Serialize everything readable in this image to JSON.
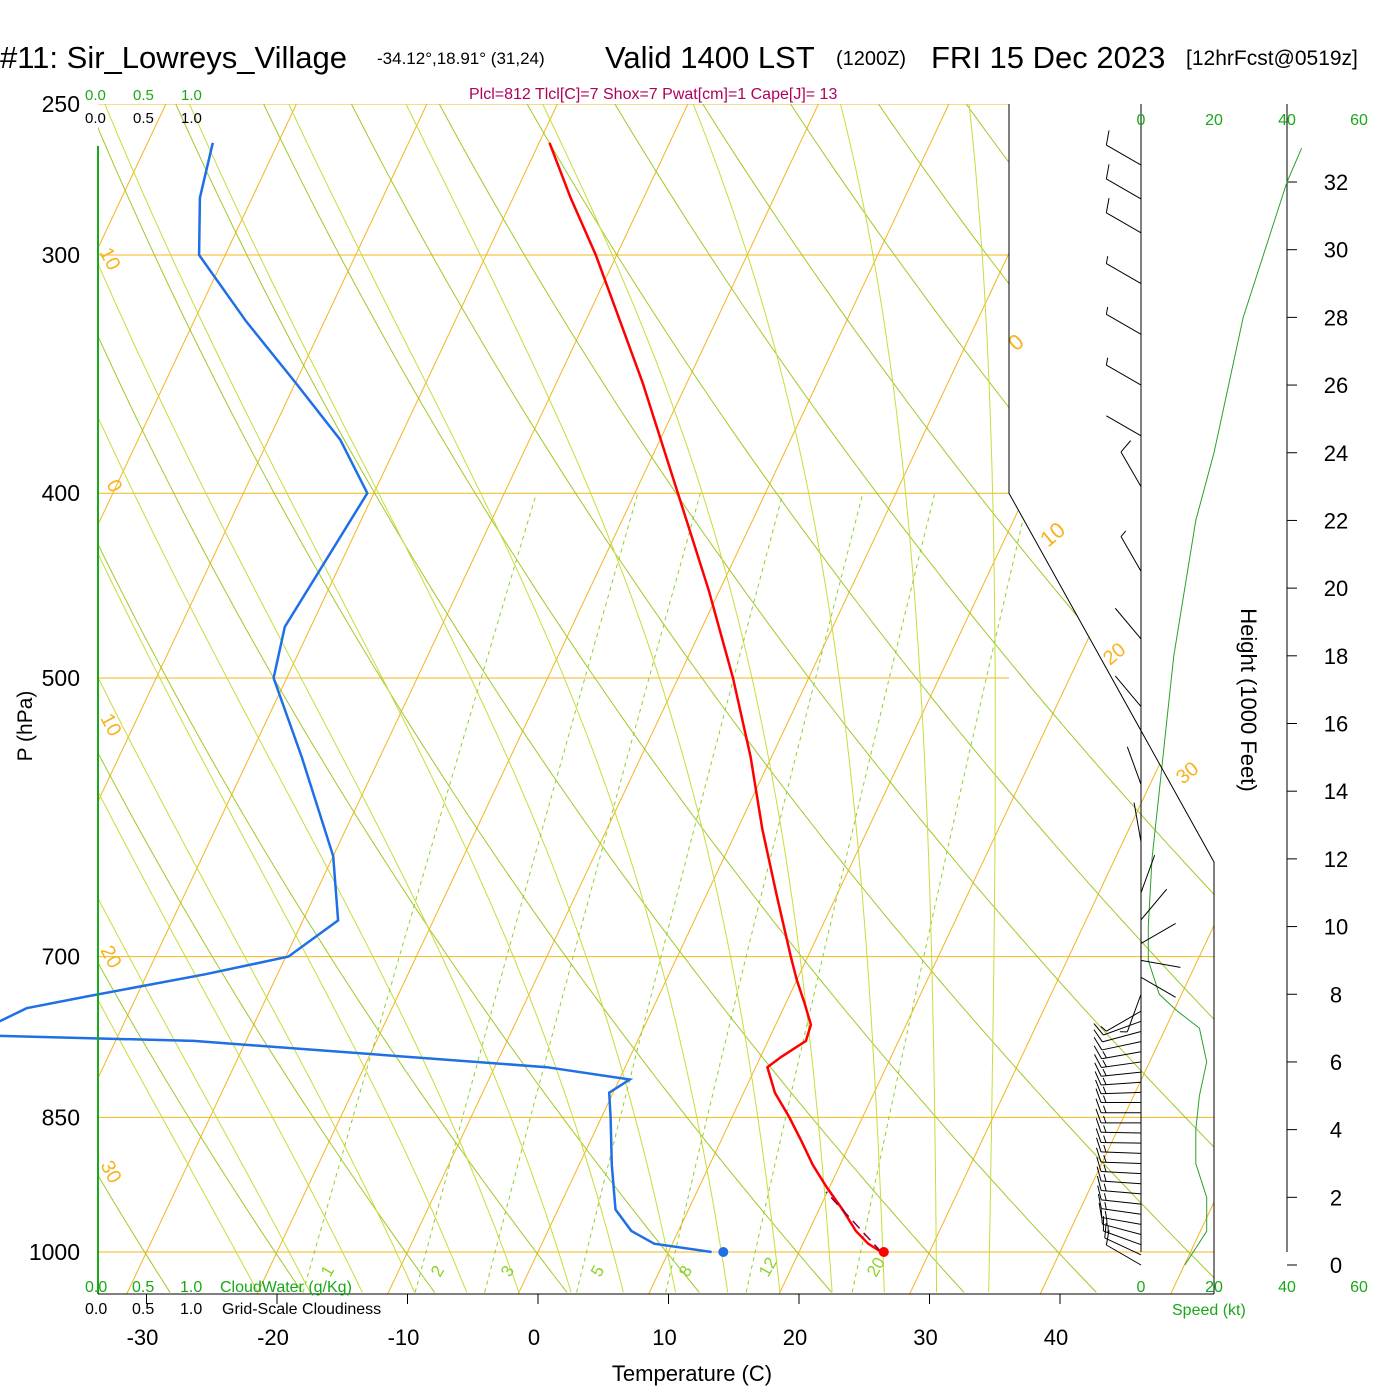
{
  "header": {
    "title_station": "#11: Sir_Lowreys_Village",
    "title_coords": "-34.12°,18.91° (31,24)",
    "title_valid": "Valid 1400 LST",
    "title_z": "(1200Z)",
    "title_date": "FRI 15 Dec 2023",
    "title_fcst": "[12hrFcst@0519z]",
    "stats": "Plcl=812 Tlcl[C]=7 Shox=7 Pwat[cm]=1 Cape[J]= 13"
  },
  "colors": {
    "temperature": "#ff0000",
    "dewpoint": "#1f6fe6",
    "isotherm": "#f5b41e",
    "dry_adiabat": "#9fc92a",
    "moist_adiabat": "#c8dc3c",
    "mixing_ratio": "#8cd22a",
    "green_label": "#18a818",
    "stats_text": "#b0005a",
    "parcel": "#800040"
  },
  "labels": {
    "y_axis": "P (hPa)",
    "x_axis": "Temperature (C)",
    "right_axis": "Height (1000 Feet)",
    "speed_axis": "Speed (kt)",
    "cloudwater": "CloudWater (g/Kg)",
    "cloudiness": "Grid-Scale Cloudiness",
    "cloud_ticks": [
      "0.0",
      "0.5",
      "1.0"
    ]
  },
  "chart_data": {
    "type": "skew-t",
    "pressure_ticks": [
      250,
      300,
      400,
      500,
      700,
      850,
      1000
    ],
    "temperature_ticks": [
      -30,
      -20,
      -10,
      0,
      10,
      20,
      30,
      40
    ],
    "height_ticks_kft": [
      0,
      2,
      4,
      6,
      8,
      10,
      12,
      14,
      16,
      18,
      20,
      22,
      24,
      26,
      28,
      30,
      32
    ],
    "speed_ticks_top": [
      0,
      20,
      40,
      60
    ],
    "speed_ticks_bottom": [
      0,
      20,
      40,
      60
    ],
    "isotherm_labels": [
      -30,
      -20,
      -10,
      0,
      10,
      20,
      30
    ],
    "mixing_ratio_labels": [
      "1",
      "2",
      "3",
      "5",
      "8",
      "12",
      "20"
    ],
    "temperature_profile": [
      {
        "p": 1000,
        "t": 26.3
      },
      {
        "p": 990,
        "t": 25.0
      },
      {
        "p": 975,
        "t": 23.6
      },
      {
        "p": 950,
        "t": 21.8
      },
      {
        "p": 925,
        "t": 19.8
      },
      {
        "p": 900,
        "t": 17.9
      },
      {
        "p": 875,
        "t": 16.2
      },
      {
        "p": 850,
        "t": 14.4
      },
      {
        "p": 825,
        "t": 12.4
      },
      {
        "p": 800,
        "t": 10.9
      },
      {
        "p": 790,
        "t": 11.6
      },
      {
        "p": 775,
        "t": 12.9
      },
      {
        "p": 760,
        "t": 12.7
      },
      {
        "p": 740,
        "t": 11.4
      },
      {
        "p": 720,
        "t": 10.0
      },
      {
        "p": 700,
        "t": 8.7
      },
      {
        "p": 650,
        "t": 5.4
      },
      {
        "p": 600,
        "t": 1.9
      },
      {
        "p": 550,
        "t": -1.6
      },
      {
        "p": 500,
        "t": -5.8
      },
      {
        "p": 450,
        "t": -10.8
      },
      {
        "p": 400,
        "t": -16.7
      },
      {
        "p": 350,
        "t": -23.4
      },
      {
        "p": 300,
        "t": -31.6
      },
      {
        "p": 280,
        "t": -35.6
      },
      {
        "p": 262,
        "t": -39.2
      }
    ],
    "dewpoint_profile": [
      {
        "p": 1000,
        "t": 13.3
      },
      {
        "p": 990,
        "t": 8.6
      },
      {
        "p": 975,
        "t": 6.4
      },
      {
        "p": 950,
        "t": 4.4
      },
      {
        "p": 900,
        "t": 2.5
      },
      {
        "p": 850,
        "t": 0.7
      },
      {
        "p": 825,
        "t": -0.3
      },
      {
        "p": 812,
        "t": 0.8
      },
      {
        "p": 800,
        "t": -6.0
      },
      {
        "p": 775,
        "t": -34.0
      },
      {
        "p": 770,
        "t": -50.0
      },
      {
        "p": 760,
        "t": -50.0
      },
      {
        "p": 745,
        "t": -48.0
      },
      {
        "p": 735,
        "t": -44.0
      },
      {
        "p": 715,
        "t": -35.5
      },
      {
        "p": 700,
        "t": -29.8
      },
      {
        "p": 670,
        "t": -27.3
      },
      {
        "p": 620,
        "t": -30.0
      },
      {
        "p": 550,
        "t": -36.0
      },
      {
        "p": 500,
        "t": -41.0
      },
      {
        "p": 470,
        "t": -42.0
      },
      {
        "p": 400,
        "t": -40.5
      },
      {
        "p": 375,
        "t": -44.5
      },
      {
        "p": 350,
        "t": -50.0
      },
      {
        "p": 325,
        "t": -56.0
      },
      {
        "p": 300,
        "t": -62.0
      },
      {
        "p": 280,
        "t": -64.0
      },
      {
        "p": 262,
        "t": -65.0
      }
    ],
    "surface_temperature_marker": 26.5,
    "surface_dewpoint_marker": 14.2,
    "parcel_path": [
      {
        "p": 1000,
        "t": 26.3
      },
      {
        "p": 960,
        "t": 22.7
      },
      {
        "p": 930,
        "t": 19.9
      }
    ],
    "wind_speed_profile": [
      {
        "z": 0,
        "spd": 12
      },
      {
        "z": 0.5,
        "spd": 15
      },
      {
        "z": 1,
        "spd": 18
      },
      {
        "z": 2,
        "spd": 18
      },
      {
        "z": 3,
        "spd": 15
      },
      {
        "z": 4,
        "spd": 15
      },
      {
        "z": 5,
        "spd": 16
      },
      {
        "z": 6,
        "spd": 18
      },
      {
        "z": 7,
        "spd": 16
      },
      {
        "z": 7.5,
        "spd": 10
      },
      {
        "z": 8,
        "spd": 5
      },
      {
        "z": 9,
        "spd": 2
      },
      {
        "z": 10,
        "spd": 2
      },
      {
        "z": 12,
        "spd": 3
      },
      {
        "z": 14,
        "spd": 5
      },
      {
        "z": 16,
        "spd": 7
      },
      {
        "z": 18,
        "spd": 9
      },
      {
        "z": 20,
        "spd": 12
      },
      {
        "z": 22,
        "spd": 15
      },
      {
        "z": 24,
        "spd": 20
      },
      {
        "z": 26,
        "spd": 24
      },
      {
        "z": 28,
        "spd": 28
      },
      {
        "z": 30,
        "spd": 34
      },
      {
        "z": 32,
        "spd": 40
      },
      {
        "z": 33,
        "spd": 44
      }
    ],
    "wind_barbs": [
      {
        "z": 0.0,
        "dir": 300,
        "spd": 12
      },
      {
        "z": 0.3,
        "dir": 295,
        "spd": 14
      },
      {
        "z": 0.6,
        "dir": 290,
        "spd": 16
      },
      {
        "z": 0.9,
        "dir": 285,
        "spd": 17
      },
      {
        "z": 1.2,
        "dir": 280,
        "spd": 18
      },
      {
        "z": 1.5,
        "dir": 278,
        "spd": 18
      },
      {
        "z": 1.8,
        "dir": 276,
        "spd": 18
      },
      {
        "z": 2.1,
        "dir": 275,
        "spd": 17
      },
      {
        "z": 2.4,
        "dir": 274,
        "spd": 16
      },
      {
        "z": 2.7,
        "dir": 273,
        "spd": 15
      },
      {
        "z": 3.0,
        "dir": 272,
        "spd": 15
      },
      {
        "z": 3.3,
        "dir": 272,
        "spd": 15
      },
      {
        "z": 3.6,
        "dir": 271,
        "spd": 15
      },
      {
        "z": 3.9,
        "dir": 271,
        "spd": 15
      },
      {
        "z": 4.2,
        "dir": 270,
        "spd": 16
      },
      {
        "z": 4.5,
        "dir": 270,
        "spd": 16
      },
      {
        "z": 4.8,
        "dir": 270,
        "spd": 16
      },
      {
        "z": 5.1,
        "dir": 268,
        "spd": 17
      },
      {
        "z": 5.4,
        "dir": 266,
        "spd": 17
      },
      {
        "z": 5.7,
        "dir": 264,
        "spd": 18
      },
      {
        "z": 6.0,
        "dir": 262,
        "spd": 17
      },
      {
        "z": 6.3,
        "dir": 260,
        "spd": 16
      },
      {
        "z": 6.6,
        "dir": 258,
        "spd": 14
      },
      {
        "z": 6.9,
        "dir": 255,
        "spd": 12
      },
      {
        "z": 7.2,
        "dir": 250,
        "spd": 10
      },
      {
        "z": 7.5,
        "dir": 240,
        "spd": 8
      },
      {
        "z": 8.0,
        "dir": 200,
        "spd": 5
      },
      {
        "z": 8.5,
        "dir": 120,
        "spd": 4
      },
      {
        "z": 9.0,
        "dir": 100,
        "spd": 4
      },
      {
        "z": 9.5,
        "dir": 60,
        "spd": 3
      },
      {
        "z": 10.2,
        "dir": 40,
        "spd": 3
      },
      {
        "z": 11.0,
        "dir": 20,
        "spd": 3
      },
      {
        "z": 12.5,
        "dir": 350,
        "spd": 3
      },
      {
        "z": 14.2,
        "dir": 340,
        "spd": 3
      },
      {
        "z": 16.5,
        "dir": 320,
        "spd": 3
      },
      {
        "z": 18.5,
        "dir": 320,
        "spd": 3
      },
      {
        "z": 20.5,
        "dir": 330,
        "spd": 9
      },
      {
        "z": 23.0,
        "dir": 330,
        "spd": 10
      },
      {
        "z": 24.5,
        "dir": 300,
        "spd": 4
      },
      {
        "z": 26.0,
        "dir": 300,
        "spd": 5
      },
      {
        "z": 27.5,
        "dir": 300,
        "spd": 7
      },
      {
        "z": 29.0,
        "dir": 300,
        "spd": 9
      },
      {
        "z": 30.5,
        "dir": 300,
        "spd": 10
      },
      {
        "z": 31.5,
        "dir": 300,
        "spd": 12
      },
      {
        "z": 32.5,
        "dir": 300,
        "spd": 14
      }
    ]
  }
}
